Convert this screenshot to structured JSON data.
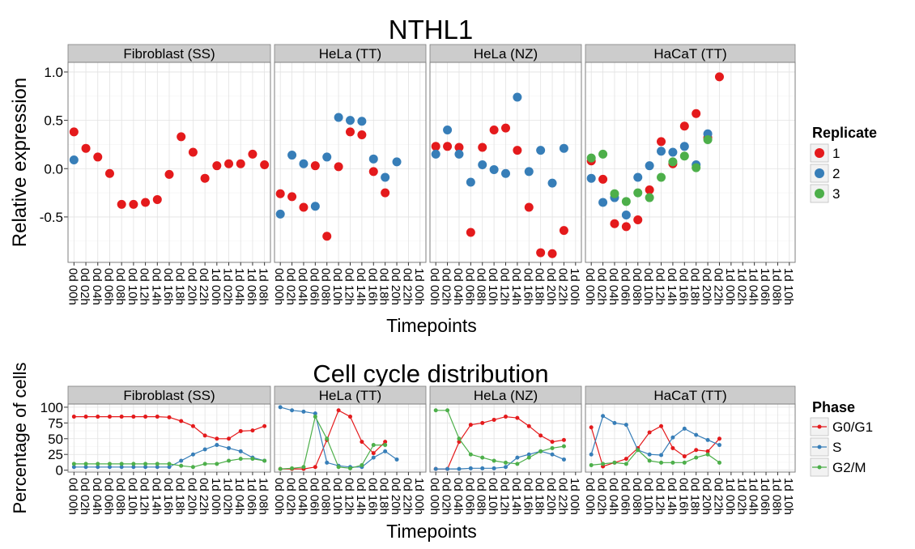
{
  "chart_data": [
    {
      "type": "scatter",
      "title": "NTHL1",
      "xlabel": "Timepoints",
      "ylabel": "Relative expression",
      "yticks": [
        "-0.5",
        "0.0",
        "0.5",
        "1.0"
      ],
      "ylim": [
        -0.97,
        1.1
      ],
      "legend": {
        "title": "Replicate",
        "position": "right",
        "entries": [
          "1",
          "2",
          "3"
        ]
      },
      "series_colors": {
        "1": "#e41a1c",
        "2": "#377eb8",
        "3": "#4daf4a"
      },
      "panels": [
        {
          "label": "Fibroblast (SS)",
          "categories": [
            "0d 00h",
            "0d 02h",
            "0d 04h",
            "0d 06h",
            "0d 08h",
            "0d 10h",
            "0d 12h",
            "0d 14h",
            "0d 16h",
            "0d 18h",
            "0d 20h",
            "0d 22h",
            "1d 00h",
            "1d 02h",
            "1d 04h",
            "1d 06h",
            "1d 08h"
          ],
          "series": [
            {
              "name": "1",
              "values": [
                0.38,
                0.21,
                0.12,
                -0.05,
                -0.37,
                -0.37,
                -0.35,
                -0.32,
                -0.06,
                0.33,
                0.17,
                -0.1,
                0.03,
                0.05,
                0.05,
                0.15,
                0.04
              ]
            },
            {
              "name": "2",
              "values": [
                0.09,
                null,
                null,
                null,
                null,
                null,
                null,
                null,
                null,
                null,
                null,
                null,
                null,
                null,
                null,
                null,
                null
              ]
            }
          ]
        },
        {
          "label": "HeLa (TT)",
          "categories": [
            "0d 00h",
            "0d 02h",
            "0d 04h",
            "0d 06h",
            "0d 08h",
            "0d 10h",
            "0d 12h",
            "0d 14h",
            "0d 16h",
            "0d 18h",
            "0d 20h",
            "0d 22h",
            "1d 00h"
          ],
          "series": [
            {
              "name": "1",
              "values": [
                -0.26,
                -0.29,
                -0.4,
                0.03,
                -0.7,
                0.02,
                0.38,
                0.35,
                -0.03,
                -0.25,
                null,
                null,
                null
              ]
            },
            {
              "name": "2",
              "values": [
                -0.47,
                0.14,
                0.05,
                -0.39,
                0.12,
                0.53,
                0.5,
                0.49,
                0.1,
                -0.09,
                0.07,
                null,
                null
              ]
            }
          ]
        },
        {
          "label": "HeLa (NZ)",
          "categories": [
            "0d 00h",
            "0d 02h",
            "0d 04h",
            "0d 06h",
            "0d 08h",
            "0d 10h",
            "0d 12h",
            "0d 14h",
            "0d 16h",
            "0d 18h",
            "0d 20h",
            "0d 22h",
            "1d 00h"
          ],
          "series": [
            {
              "name": "1",
              "values": [
                0.23,
                0.23,
                0.22,
                -0.66,
                0.22,
                0.4,
                0.42,
                0.19,
                -0.4,
                -0.87,
                -0.88,
                -0.64,
                null
              ]
            },
            {
              "name": "2",
              "values": [
                0.15,
                0.4,
                0.15,
                -0.14,
                0.04,
                -0.01,
                -0.05,
                0.74,
                -0.03,
                0.19,
                -0.15,
                0.21,
                null
              ]
            }
          ]
        },
        {
          "label": "HaCaT (TT)",
          "categories": [
            "0d 00h",
            "0d 02h",
            "0d 04h",
            "0d 06h",
            "0d 08h",
            "0d 10h",
            "0d 12h",
            "0d 14h",
            "0d 16h",
            "0d 18h",
            "0d 20h",
            "0d 22h",
            "1d 00h",
            "1d 02h",
            "1d 04h",
            "1d 06h",
            "1d 08h",
            "1d 10h"
          ],
          "series": [
            {
              "name": "1",
              "values": [
                0.08,
                -0.11,
                -0.57,
                -0.6,
                -0.53,
                -0.22,
                0.28,
                0.05,
                0.44,
                0.57,
                0.32,
                0.95,
                null,
                null,
                null,
                null,
                null,
                null
              ]
            },
            {
              "name": "2",
              "values": [
                -0.1,
                -0.35,
                -0.3,
                -0.48,
                -0.09,
                0.03,
                0.18,
                0.17,
                0.23,
                0.04,
                0.36,
                null,
                null,
                null,
                null,
                null,
                null,
                null
              ]
            },
            {
              "name": "3",
              "values": [
                0.11,
                0.15,
                -0.26,
                -0.34,
                -0.25,
                -0.3,
                -0.09,
                0.07,
                0.13,
                0.01,
                0.3,
                null,
                null,
                null,
                null,
                null,
                null,
                null
              ]
            }
          ]
        }
      ]
    },
    {
      "type": "line",
      "title": "Cell cycle distribution",
      "xlabel": "Timepoints",
      "ylabel": "Percentage of cells",
      "yticks": [
        "0",
        "25",
        "50",
        "75",
        "100"
      ],
      "ylim": [
        -3,
        105
      ],
      "legend": {
        "title": "Phase",
        "position": "right",
        "entries": [
          "G0/G1",
          "S",
          "G2/M"
        ]
      },
      "series_colors": {
        "G0/G1": "#e41a1c",
        "S": "#377eb8",
        "G2/M": "#4daf4a"
      },
      "panels": [
        {
          "label": "Fibroblast (SS)",
          "categories": [
            "0d 00h",
            "0d 02h",
            "0d 04h",
            "0d 06h",
            "0d 08h",
            "0d 10h",
            "0d 12h",
            "0d 14h",
            "0d 16h",
            "0d 18h",
            "0d 20h",
            "0d 22h",
            "1d 00h",
            "1d 02h",
            "1d 04h",
            "1d 06h",
            "1d 08h"
          ],
          "series": [
            {
              "name": "G0/G1",
              "values": [
                85,
                85,
                85,
                85,
                85,
                85,
                85,
                85,
                84,
                78,
                70,
                55,
                50,
                50,
                62,
                63,
                70
              ]
            },
            {
              "name": "S",
              "values": [
                5,
                5,
                5,
                5,
                5,
                5,
                5,
                5,
                5,
                15,
                25,
                33,
                40,
                35,
                30,
                20,
                15
              ]
            },
            {
              "name": "G2/M",
              "values": [
                10,
                10,
                10,
                10,
                10,
                10,
                10,
                10,
                10,
                7,
                5,
                10,
                10,
                15,
                18,
                18,
                15
              ]
            }
          ]
        },
        {
          "label": "HeLa (TT)",
          "categories": [
            "0d 00h",
            "0d 02h",
            "0d 04h",
            "0d 06h",
            "0d 08h",
            "0d 10h",
            "0d 12h",
            "0d 14h",
            "0d 16h",
            "0d 18h",
            "0d 20h",
            "0d 22h",
            "1d 00h"
          ],
          "series": [
            {
              "name": "G0/G1",
              "values": [
                2,
                2,
                2,
                5,
                48,
                95,
                85,
                45,
                27,
                45,
                null,
                null,
                null
              ]
            },
            {
              "name": "S",
              "values": [
                100,
                95,
                93,
                90,
                12,
                7,
                5,
                5,
                20,
                30,
                17,
                null,
                null
              ]
            },
            {
              "name": "G2/M",
              "values": [
                2,
                3,
                5,
                85,
                50,
                5,
                3,
                8,
                40,
                40,
                null,
                null,
                null
              ]
            }
          ]
        },
        {
          "label": "HeLa (NZ)",
          "categories": [
            "0d 00h",
            "0d 02h",
            "0d 04h",
            "0d 06h",
            "0d 08h",
            "0d 10h",
            "0d 12h",
            "0d 14h",
            "0d 16h",
            "0d 18h",
            "0d 20h",
            "0d 22h",
            "1d 00h"
          ],
          "series": [
            {
              "name": "G0/G1",
              "values": [
                2,
                2,
                45,
                72,
                75,
                80,
                85,
                83,
                70,
                55,
                45,
                48,
                null
              ]
            },
            {
              "name": "S",
              "values": [
                2,
                2,
                2,
                3,
                3,
                3,
                5,
                20,
                25,
                30,
                25,
                17,
                null
              ]
            },
            {
              "name": "G2/M",
              "values": [
                95,
                95,
                50,
                25,
                20,
                15,
                12,
                10,
                20,
                30,
                35,
                38,
                null
              ]
            }
          ]
        },
        {
          "label": "HaCaT (TT)",
          "categories": [
            "0d 00h",
            "0d 02h",
            "0d 04h",
            "0d 06h",
            "0d 08h",
            "0d 10h",
            "0d 12h",
            "0d 14h",
            "0d 16h",
            "0d 18h",
            "0d 20h",
            "0d 22h",
            "1d 00h",
            "1d 02h",
            "1d 04h",
            "1d 06h",
            "1d 08h",
            "1d 10h"
          ],
          "series": [
            {
              "name": "G0/G1",
              "values": [
                68,
                6,
                12,
                18,
                35,
                60,
                70,
                35,
                22,
                32,
                30,
                50,
                null,
                null,
                null,
                null,
                null,
                null
              ]
            },
            {
              "name": "S",
              "values": [
                25,
                86,
                75,
                72,
                32,
                25,
                24,
                52,
                66,
                56,
                48,
                40,
                null,
                null,
                null,
                null,
                null,
                null
              ]
            },
            {
              "name": "G2/M",
              "values": [
                8,
                10,
                12,
                10,
                32,
                15,
                12,
                12,
                12,
                20,
                25,
                12,
                null,
                null,
                null,
                null,
                null,
                null
              ]
            }
          ]
        }
      ]
    }
  ]
}
